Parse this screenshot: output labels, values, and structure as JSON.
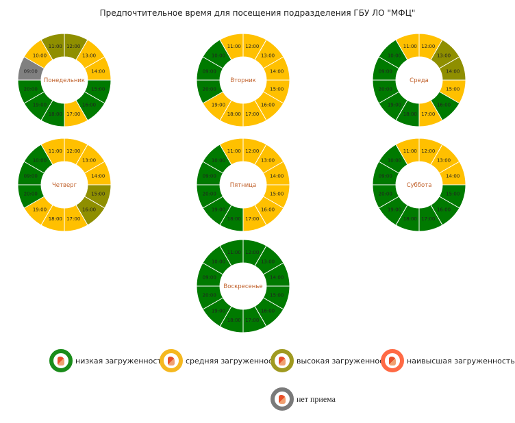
{
  "chart_data": {
    "type": "donut",
    "title": "Предпочтительное время для посещения подразделения ГБУ ЛО \"МФЦ\"",
    "levels": {
      "low": {
        "label": "низкая загруженность",
        "color": "#007a00"
      },
      "medium": {
        "label": "средняя загруженность",
        "color": "#ffc000"
      },
      "high": {
        "label": "высокая загруженность",
        "color": "#8f8f00"
      },
      "highest": {
        "label": "наивысшая загруженность",
        "color": "#ff6a45"
      },
      "closed": {
        "label": "нет приема",
        "color": "#808080"
      }
    },
    "legend_order": [
      "low",
      "medium",
      "high",
      "highest",
      "closed"
    ],
    "hours": [
      "12:00",
      "13:00",
      "14:00",
      "15:00",
      "16:00",
      "17:00",
      "18:00",
      "19:00",
      "20:00",
      "09:00",
      "10:00",
      "11:00"
    ],
    "days": [
      {
        "name": "Понедельник",
        "levels": [
          "high",
          "medium",
          "medium",
          "low",
          "low",
          "medium",
          "low",
          "low",
          "low",
          "closed",
          "medium",
          "high"
        ]
      },
      {
        "name": "Вторник",
        "levels": [
          "medium",
          "medium",
          "medium",
          "medium",
          "medium",
          "medium",
          "medium",
          "medium",
          "low",
          "low",
          "low",
          "medium"
        ]
      },
      {
        "name": "Среда",
        "levels": [
          "medium",
          "high",
          "high",
          "medium",
          "low",
          "medium",
          "low",
          "low",
          "low",
          "low",
          "low",
          "medium"
        ]
      },
      {
        "name": "Четверг",
        "levels": [
          "medium",
          "medium",
          "medium",
          "high",
          "high",
          "medium",
          "medium",
          "medium",
          "low",
          "low",
          "low",
          "medium"
        ]
      },
      {
        "name": "Пятница",
        "levels": [
          "medium",
          "medium",
          "medium",
          "medium",
          "medium",
          "medium",
          "low",
          "low",
          "low",
          "low",
          "low",
          "medium"
        ]
      },
      {
        "name": "Суббота",
        "levels": [
          "medium",
          "medium",
          "medium",
          "low",
          "low",
          "low",
          "low",
          "low",
          "low",
          "low",
          "low",
          "medium"
        ]
      },
      {
        "name": "Воскресенье",
        "levels": [
          "low",
          "low",
          "low",
          "low",
          "low",
          "low",
          "low",
          "low",
          "low",
          "low",
          "low",
          "low"
        ]
      }
    ]
  }
}
